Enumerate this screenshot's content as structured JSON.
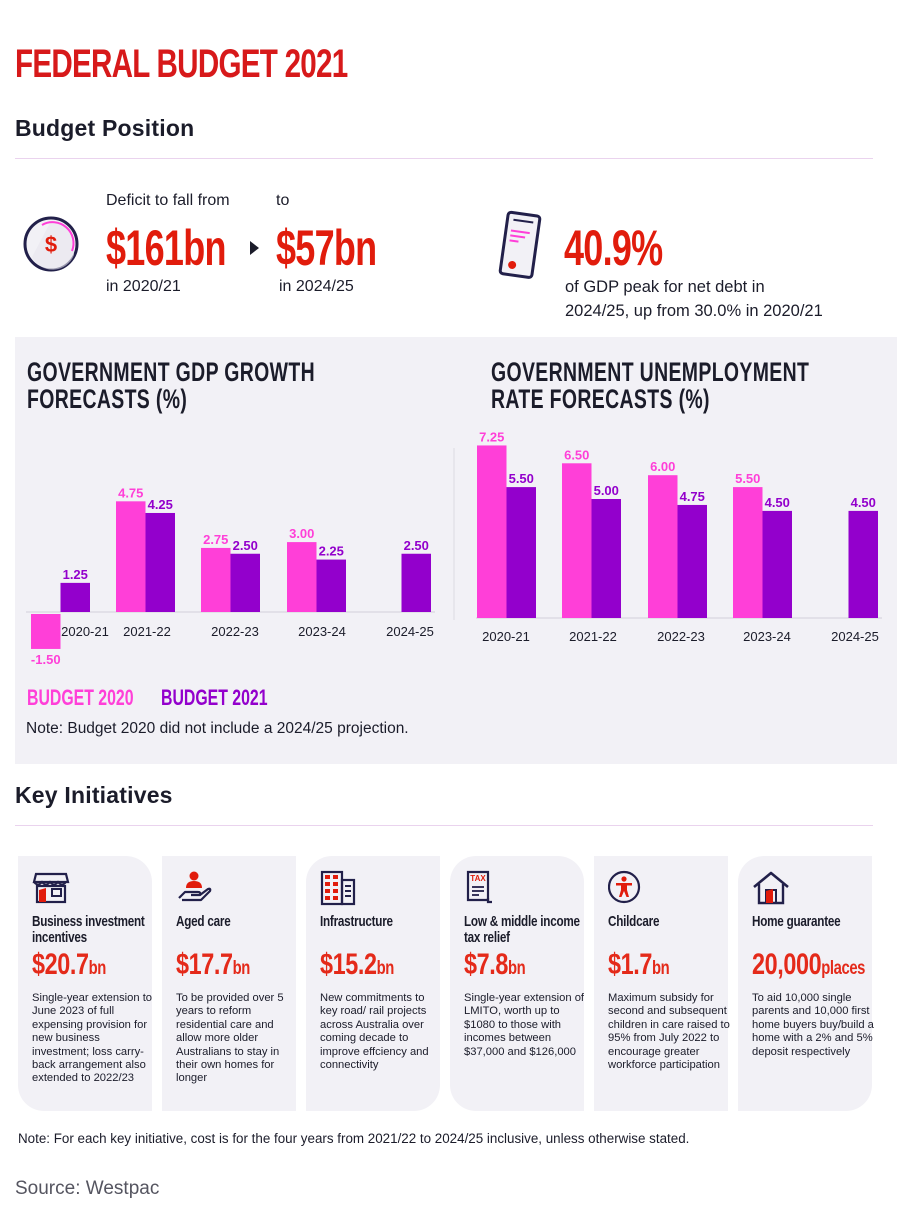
{
  "header": {
    "title": "FEDERAL BUDGET 2021",
    "budget_position_heading": "Budget Position",
    "key_initiatives_heading": "Key Initiatives"
  },
  "budget_position": {
    "deficit": {
      "label_from": "Deficit to fall from",
      "label_to": "to",
      "from_value": "$161bn",
      "to_value": "$57bn",
      "from_year": "in 2020/21",
      "to_year": "in 2024/25",
      "icon": "dollar-coin-icon"
    },
    "net_debt": {
      "value": "40.9%",
      "desc_line1": "of GDP peak for net debt in",
      "desc_line2": "2024/25, up from 30.0% in 2020/21",
      "icon": "document-phone-icon"
    }
  },
  "colors": {
    "budget_2020": "#ff3fd8",
    "budget_2021": "#9300cc",
    "accent_red": "#e11c0c",
    "panel_bg": "#f2f1f6"
  },
  "chart_data": [
    {
      "type": "bar",
      "title": "GOVERNMENT GDP GROWTH FORECASTS (%)",
      "title_line1": "GOVERNMENT GDP GROWTH",
      "title_line2": "FORECASTS (%)",
      "categories": [
        "2020-21",
        "2021-22",
        "2022-23",
        "2023-24",
        "2024-25"
      ],
      "series": [
        {
          "name": "BUDGET 2020",
          "values": [
            -1.5,
            4.75,
            2.75,
            3.0,
            null
          ],
          "labels": [
            "-1.50",
            "4.75",
            "2.75",
            "3.00",
            null
          ]
        },
        {
          "name": "BUDGET 2021",
          "values": [
            1.25,
            4.25,
            2.5,
            2.25,
            2.5
          ],
          "labels": [
            "1.25",
            "4.25",
            "2.50",
            "2.25",
            "2.50"
          ]
        }
      ],
      "xlabel": "",
      "ylabel": "",
      "ylim": [
        -1.5,
        5.5
      ],
      "grid": false,
      "legend": "bottom-left"
    },
    {
      "type": "bar",
      "title": "GOVERNMENT UNEMPLOYMENT RATE FORECASTS (%)",
      "title_line1": "GOVERNMENT UNEMPLOYMENT",
      "title_line2": "RATE FORECASTS (%)",
      "categories": [
        "2020-21",
        "2021-22",
        "2022-23",
        "2023-24",
        "2024-25"
      ],
      "series": [
        {
          "name": "BUDGET 2020",
          "values": [
            7.25,
            6.5,
            6.0,
            5.5,
            null
          ],
          "labels": [
            "7.25",
            "6.50",
            "6.00",
            "5.50",
            null
          ]
        },
        {
          "name": "BUDGET 2021",
          "values": [
            5.5,
            5.0,
            4.75,
            4.5,
            4.5
          ],
          "labels": [
            "5.50",
            "5.00",
            "4.75",
            "4.50",
            "4.50"
          ]
        }
      ],
      "xlabel": "",
      "ylabel": "",
      "ylim": [
        0,
        7.8
      ],
      "grid": false,
      "legend": "bottom-left"
    }
  ],
  "legend": {
    "items": [
      "BUDGET 2020",
      "BUDGET 2021"
    ],
    "note": "Note: Budget 2020 did not include a 2024/25 projection."
  },
  "initiatives": [
    {
      "title": "Business investment incentives",
      "value": "$20.7",
      "unit": "bn",
      "icon": "storefront-icon",
      "desc": "Single-year extension to June 2023 of full expensing provision for new business investment; loss carry-back arrangement also extended to 2022/23"
    },
    {
      "title": "Aged care",
      "value": "$17.7",
      "unit": "bn",
      "icon": "hand-person-icon",
      "desc": "To be provided over 5 years to reform residential care and allow more older Australians to stay in their own homes for longer"
    },
    {
      "title": "Infrastructure",
      "value": "$15.2",
      "unit": "bn",
      "icon": "building-icon",
      "desc": "New commitments to key road/ rail projects across Australia over coming decade to improve effciency and connectivity"
    },
    {
      "title": "Low & middle income tax relief",
      "value": "$7.8",
      "unit": "bn",
      "icon": "tax-document-icon",
      "desc": "Single-year extension of LMITO, worth up to $1080 to those with incomes between $37,000 and $126,000"
    },
    {
      "title": "Childcare",
      "value": "$1.7",
      "unit": "bn",
      "icon": "child-circle-icon",
      "desc": "Maximum subsidy for second and subsequent children in care raised to 95% from July 2022 to encourage greater workforce participation"
    },
    {
      "title": "Home guarantee",
      "value": "20,000",
      "unit": "places",
      "icon": "house-icon",
      "desc": "To aid 10,000 single parents and 10,000 first home buyers buy/build a home with a 2% and 5% deposit respectively"
    }
  ],
  "footer": {
    "note": "Note: For each key initiative, cost is for the four years from 2021/22 to 2024/25 inclusive, unless otherwise stated.",
    "source": "Source: Westpac"
  }
}
